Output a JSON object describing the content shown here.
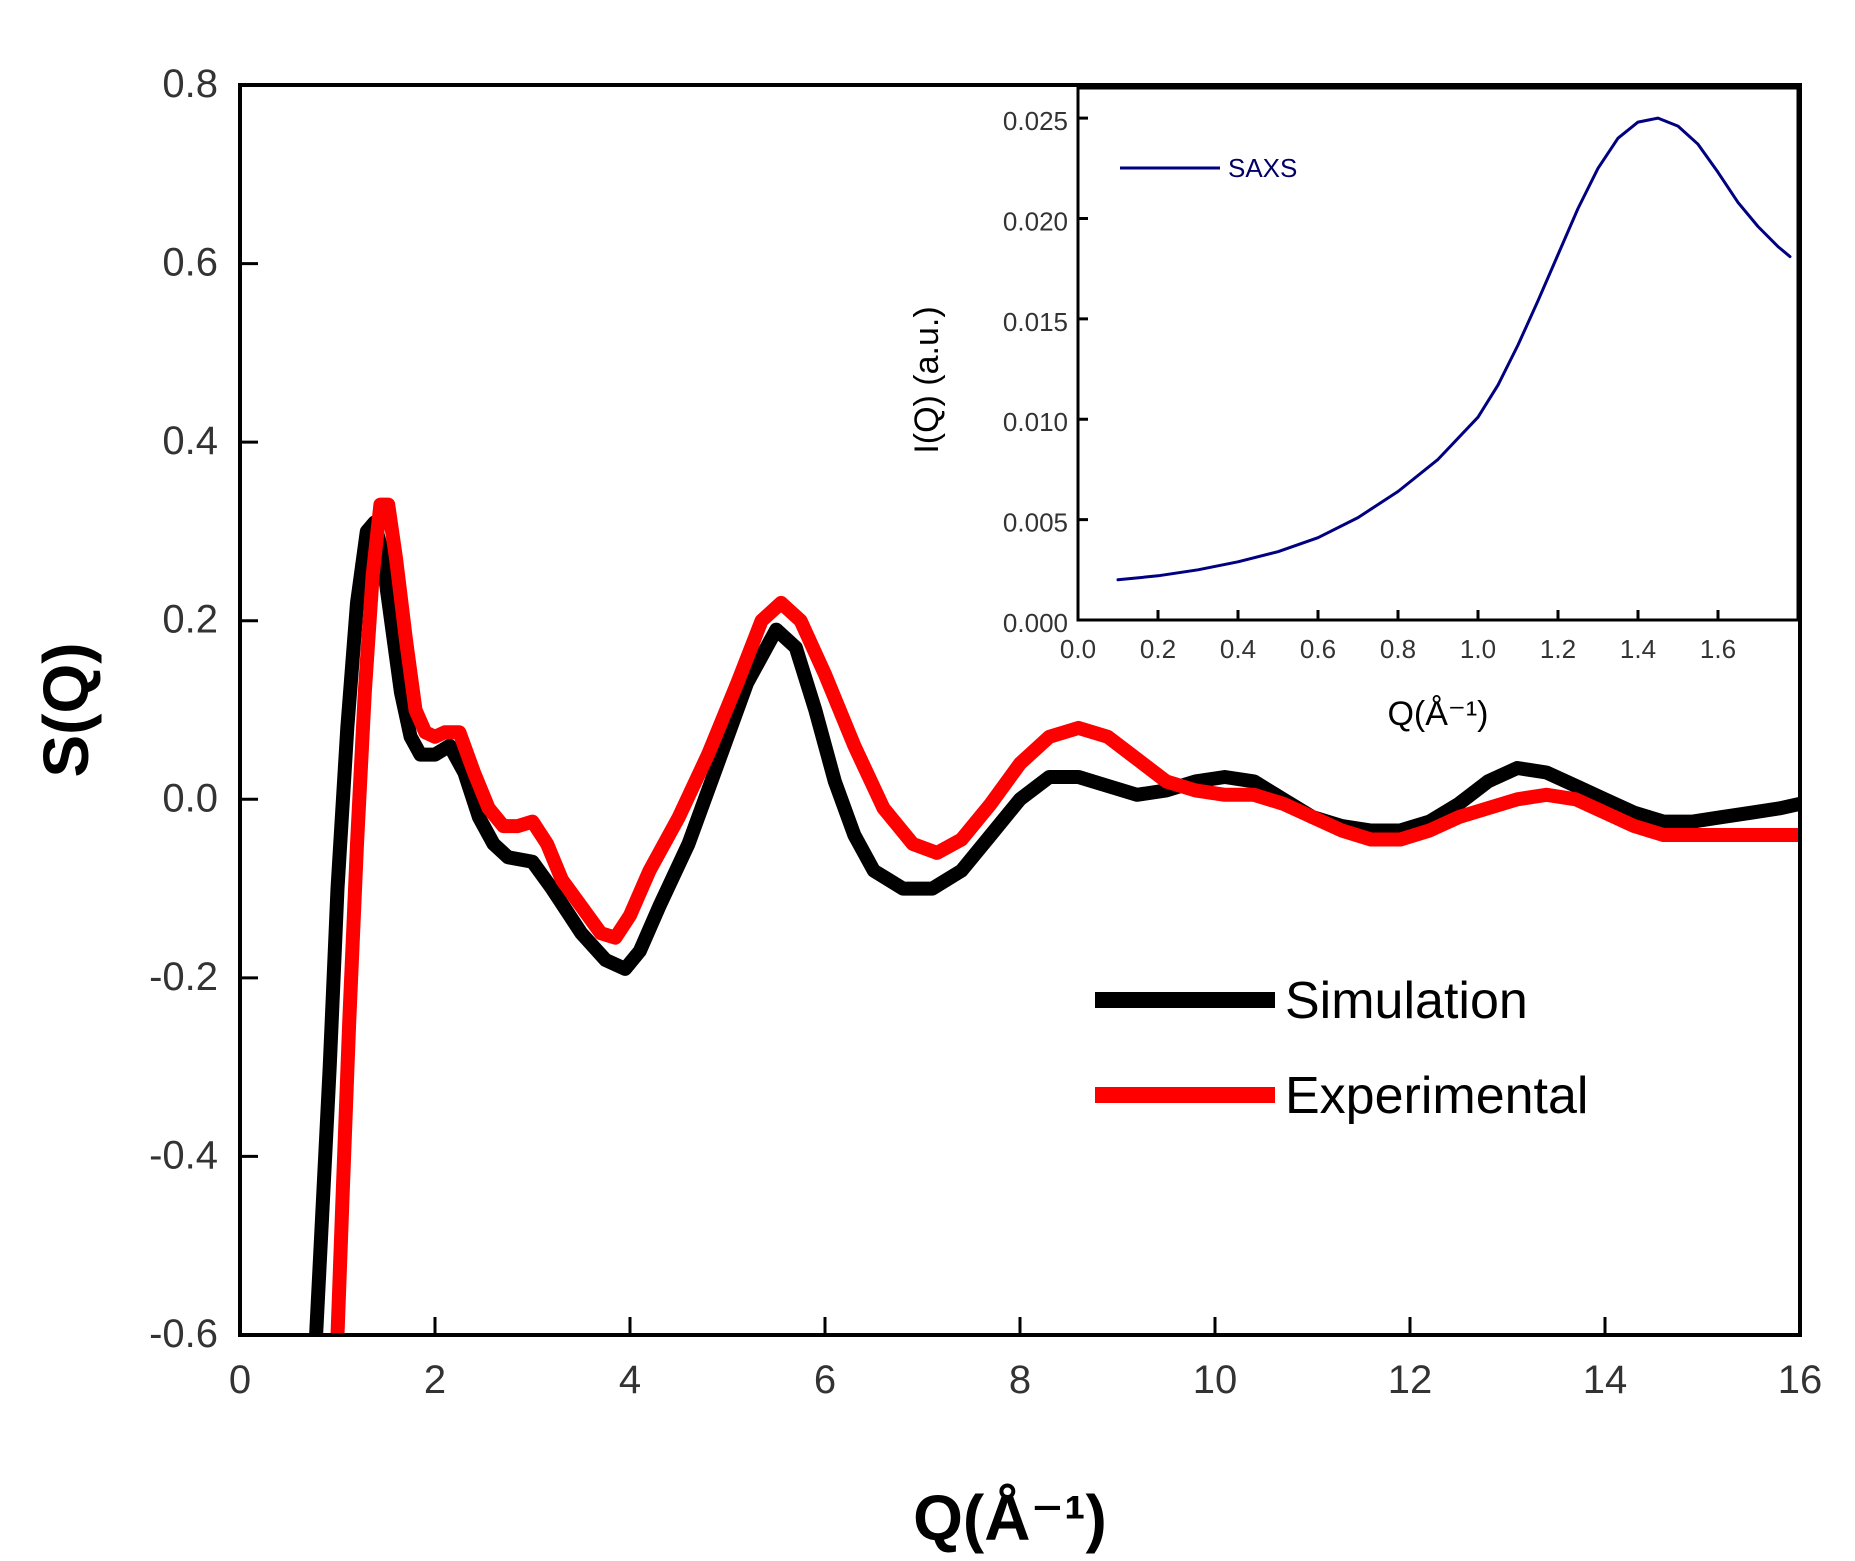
{
  "chart_data": [
    {
      "id": "main",
      "type": "line",
      "title": "",
      "xlabel": "Q(Å⁻¹)",
      "ylabel": "S(Q)",
      "xlim": [
        0,
        16
      ],
      "ylim": [
        -0.6,
        0.8
      ],
      "xticks": [
        0,
        2,
        4,
        6,
        8,
        10,
        12,
        14,
        16
      ],
      "xtick_labels": [
        "0",
        "2",
        "4",
        "6",
        "8",
        "10",
        "12",
        "14",
        "16"
      ],
      "yticks": [
        -0.6,
        -0.4,
        -0.2,
        0.0,
        0.2,
        0.4,
        0.6,
        0.8
      ],
      "ytick_labels": [
        "-0.6",
        "-0.4",
        "-0.2",
        "0.0",
        "0.2",
        "0.4",
        "0.6",
        "0.8"
      ],
      "legend_position": "center-right",
      "series": [
        {
          "name": "Simulation",
          "color": "#000000",
          "x": [
            0.78,
            0.85,
            0.92,
            1.0,
            1.1,
            1.2,
            1.3,
            1.38,
            1.45,
            1.55,
            1.65,
            1.75,
            1.85,
            2.0,
            2.15,
            2.3,
            2.45,
            2.6,
            2.75,
            3.0,
            3.2,
            3.5,
            3.75,
            3.95,
            4.1,
            4.3,
            4.6,
            4.9,
            5.2,
            5.5,
            5.7,
            5.9,
            6.1,
            6.3,
            6.5,
            6.8,
            7.1,
            7.4,
            7.7,
            8.0,
            8.3,
            8.6,
            8.9,
            9.2,
            9.5,
            9.8,
            10.1,
            10.4,
            10.7,
            11.0,
            11.3,
            11.6,
            11.9,
            12.2,
            12.5,
            12.8,
            13.1,
            13.4,
            13.7,
            14.0,
            14.3,
            14.6,
            14.9,
            15.2,
            15.5,
            15.8,
            16.0
          ],
          "y": [
            -0.6,
            -0.45,
            -0.3,
            -0.1,
            0.08,
            0.22,
            0.3,
            0.31,
            0.28,
            0.2,
            0.12,
            0.07,
            0.05,
            0.05,
            0.06,
            0.03,
            -0.02,
            -0.05,
            -0.065,
            -0.07,
            -0.1,
            -0.15,
            -0.18,
            -0.19,
            -0.17,
            -0.12,
            -0.05,
            0.04,
            0.13,
            0.19,
            0.17,
            0.1,
            0.02,
            -0.04,
            -0.08,
            -0.1,
            -0.1,
            -0.08,
            -0.04,
            0.0,
            0.025,
            0.025,
            0.015,
            0.005,
            0.01,
            0.02,
            0.025,
            0.02,
            0.0,
            -0.02,
            -0.03,
            -0.035,
            -0.035,
            -0.025,
            -0.005,
            0.02,
            0.035,
            0.03,
            0.015,
            0.0,
            -0.015,
            -0.025,
            -0.025,
            -0.02,
            -0.015,
            -0.01,
            -0.005
          ]
        },
        {
          "name": "Experimental",
          "color": "#ff0000",
          "x": [
            1.0,
            1.05,
            1.12,
            1.2,
            1.28,
            1.36,
            1.44,
            1.52,
            1.6,
            1.7,
            1.8,
            1.9,
            2.0,
            2.1,
            2.25,
            2.4,
            2.55,
            2.7,
            2.85,
            3.0,
            3.15,
            3.3,
            3.5,
            3.7,
            3.85,
            4.0,
            4.2,
            4.5,
            4.8,
            5.1,
            5.35,
            5.55,
            5.75,
            6.0,
            6.3,
            6.6,
            6.9,
            7.15,
            7.4,
            7.7,
            8.0,
            8.3,
            8.6,
            8.9,
            9.2,
            9.5,
            9.8,
            10.1,
            10.4,
            10.7,
            11.0,
            11.3,
            11.6,
            11.9,
            12.2,
            12.5,
            12.8,
            13.1,
            13.4,
            13.7,
            14.0,
            14.3,
            14.6,
            14.9,
            15.2,
            15.5,
            15.8,
            16.0
          ],
          "y": [
            -0.6,
            -0.45,
            -0.25,
            -0.05,
            0.12,
            0.25,
            0.33,
            0.33,
            0.27,
            0.18,
            0.1,
            0.075,
            0.07,
            0.075,
            0.075,
            0.03,
            -0.01,
            -0.03,
            -0.03,
            -0.025,
            -0.05,
            -0.09,
            -0.12,
            -0.15,
            -0.155,
            -0.13,
            -0.08,
            -0.02,
            0.05,
            0.13,
            0.2,
            0.22,
            0.2,
            0.14,
            0.06,
            -0.01,
            -0.05,
            -0.06,
            -0.045,
            -0.005,
            0.04,
            0.07,
            0.08,
            0.07,
            0.045,
            0.02,
            0.01,
            0.005,
            0.005,
            -0.005,
            -0.02,
            -0.035,
            -0.045,
            -0.045,
            -0.035,
            -0.02,
            -0.01,
            0.0,
            0.005,
            0.0,
            -0.015,
            -0.03,
            -0.04,
            -0.04,
            -0.04,
            -0.04,
            -0.04,
            -0.04
          ]
        }
      ]
    },
    {
      "id": "inset",
      "type": "line",
      "title": "",
      "xlabel": "Q(Å⁻¹)",
      "ylabel": "I(Q) (a.u.)",
      "xlim": [
        0.0,
        1.8
      ],
      "ylim": [
        0.0,
        0.0265
      ],
      "xticks": [
        0.0,
        0.2,
        0.4,
        0.6,
        0.8,
        1.0,
        1.2,
        1.4,
        1.6
      ],
      "xtick_labels": [
        "0.0",
        "0.2",
        "0.4",
        "0.6",
        "0.8",
        "1.0",
        "1.2",
        "1.4",
        "1.6"
      ],
      "yticks": [
        0.0,
        0.005,
        0.01,
        0.015,
        0.02,
        0.025
      ],
      "ytick_labels": [
        "0.000",
        "0.005",
        "0.010",
        "0.015",
        "0.020",
        "0.025"
      ],
      "legend_position": "top-left",
      "series": [
        {
          "name": "SAXS",
          "color": "#000080",
          "x": [
            0.1,
            0.2,
            0.3,
            0.4,
            0.5,
            0.6,
            0.7,
            0.8,
            0.9,
            1.0,
            1.05,
            1.1,
            1.15,
            1.2,
            1.25,
            1.3,
            1.35,
            1.4,
            1.45,
            1.5,
            1.55,
            1.6,
            1.65,
            1.7,
            1.75,
            1.78
          ],
          "y": [
            0.002,
            0.0022,
            0.0025,
            0.0029,
            0.0034,
            0.0041,
            0.0051,
            0.0064,
            0.008,
            0.0101,
            0.0117,
            0.0137,
            0.0159,
            0.0182,
            0.0205,
            0.0225,
            0.024,
            0.0248,
            0.025,
            0.0246,
            0.0237,
            0.0223,
            0.0208,
            0.0196,
            0.0186,
            0.0181
          ]
        }
      ]
    }
  ]
}
